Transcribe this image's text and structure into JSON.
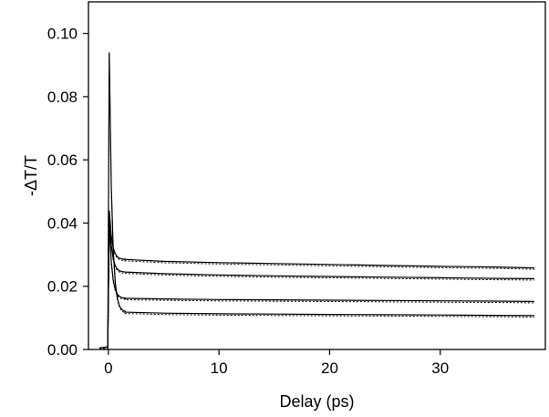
{
  "chart_data": {
    "type": "line",
    "title": "",
    "xlabel": "Delay (ps)",
    "ylabel": "-ΔT/T",
    "xlim": [
      -1.8,
      39.5
    ],
    "ylim": [
      0.0,
      0.11
    ],
    "xticks": [
      0,
      10,
      20,
      30
    ],
    "xtick_labels": [
      "0",
      "10",
      "20",
      "30"
    ],
    "yticks": [
      0.0,
      0.02,
      0.04,
      0.06,
      0.08,
      0.1
    ],
    "ytick_labels": [
      "0.00",
      "0.02",
      "0.04",
      "0.06",
      "0.08",
      "0.10"
    ],
    "grid": false,
    "legend": "none",
    "colors": {
      "line": "#000000",
      "fit": "#000000"
    },
    "series": [
      {
        "peak": 0.044,
        "x": [
          1.5,
          5,
          10,
          15,
          20,
          25,
          30,
          35,
          38.5
        ],
        "values": [
          0.0285,
          0.0279,
          0.0275,
          0.0272,
          0.0269,
          0.0266,
          0.0263,
          0.0261,
          0.0258
        ]
      },
      {
        "peak": 0.042,
        "x": [
          1.5,
          5,
          10,
          15,
          20,
          25,
          30,
          35,
          38.5
        ],
        "values": [
          0.0245,
          0.024,
          0.0236,
          0.0233,
          0.0231,
          0.0229,
          0.0227,
          0.0225,
          0.0224
        ]
      },
      {
        "peak": 0.04,
        "x": [
          1.5,
          5,
          10,
          15,
          20,
          25,
          30,
          35,
          38.5
        ],
        "values": [
          0.0162,
          0.016,
          0.0158,
          0.0157,
          0.0156,
          0.0155,
          0.0154,
          0.0153,
          0.0152
        ]
      },
      {
        "peak": 0.094,
        "x": [
          1.5,
          5,
          10,
          15,
          20,
          25,
          30,
          35,
          38.5
        ],
        "values": [
          0.0118,
          0.0115,
          0.0113,
          0.0112,
          0.0111,
          0.011,
          0.0109,
          0.0108,
          0.0107
        ]
      }
    ]
  }
}
